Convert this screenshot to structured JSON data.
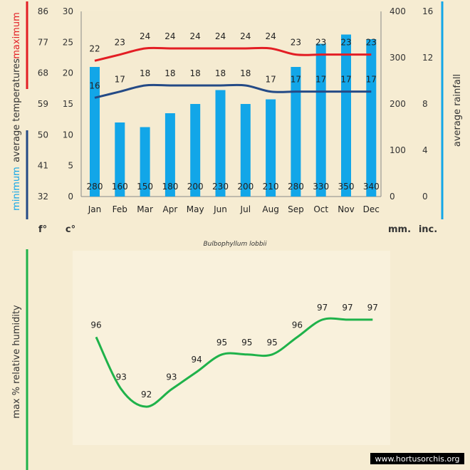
{
  "chart_data": [
    {
      "type": "bar",
      "title": "Bulbophyllum lobbii",
      "categories": [
        "Jan",
        "Feb",
        "Mar",
        "Apr",
        "May",
        "Jun",
        "Jul",
        "Aug",
        "Sep",
        "Oct",
        "Nov",
        "Dec"
      ],
      "series": [
        {
          "name": "average rainfall (mm)",
          "type": "bar",
          "values": [
            280,
            160,
            150,
            180,
            200,
            230,
            200,
            210,
            280,
            330,
            350,
            340
          ]
        },
        {
          "name": "maximum average temperature (c°)",
          "type": "line",
          "values": [
            22,
            23,
            24,
            24,
            24,
            24,
            24,
            24,
            23,
            23,
            23,
            23
          ]
        },
        {
          "name": "minimum average temperature (c°)",
          "type": "line",
          "values": [
            16,
            17,
            18,
            18,
            18,
            18,
            18,
            17,
            17,
            17,
            17,
            17
          ]
        }
      ],
      "axes": {
        "fahrenheit": {
          "unit": "f°",
          "ticks": [
            "32",
            "41",
            "50",
            "59",
            "68",
            "77",
            "86"
          ]
        },
        "celsius": {
          "unit": "c°",
          "ticks": [
            "0",
            "5",
            "10",
            "15",
            "20",
            "25",
            "30"
          ],
          "range": [
            0,
            30
          ]
        },
        "rain_mm": {
          "unit": "mm.",
          "ticks": [
            "0",
            "100",
            "200",
            "300",
            "400"
          ],
          "range": [
            0,
            400
          ]
        },
        "rain_inch": {
          "unit": "inc.",
          "ticks": [
            "0",
            "4",
            "8",
            "12",
            "16"
          ]
        }
      },
      "labels": {
        "maximum": "maximum",
        "average_temperatures": "average  temperatures",
        "minimum": "minimum",
        "rainfall": "average rainfall"
      },
      "colors": {
        "bar": "#12a6e8",
        "max": "#e31e24",
        "min": "#244a86",
        "ylabel": "#333333",
        "grid_bg": "#f6ecd2"
      }
    },
    {
      "type": "line",
      "categories": [
        "Jan",
        "Feb",
        "Mar",
        "Apr",
        "May",
        "Jun",
        "Jul",
        "Aug",
        "Sep",
        "Oct",
        "Nov",
        "Dec"
      ],
      "series": [
        {
          "name": "max % relative humidity",
          "values": [
            96,
            93,
            92,
            93,
            94,
            95,
            95,
            95,
            96,
            97,
            97,
            97
          ]
        }
      ],
      "ylabel": "max  %  relative humidity",
      "ylim": [
        90,
        99
      ],
      "colors": {
        "line": "#1fb24a",
        "panel": "#f9f0da"
      }
    }
  ],
  "watermark": "www.hortusorchis.org"
}
